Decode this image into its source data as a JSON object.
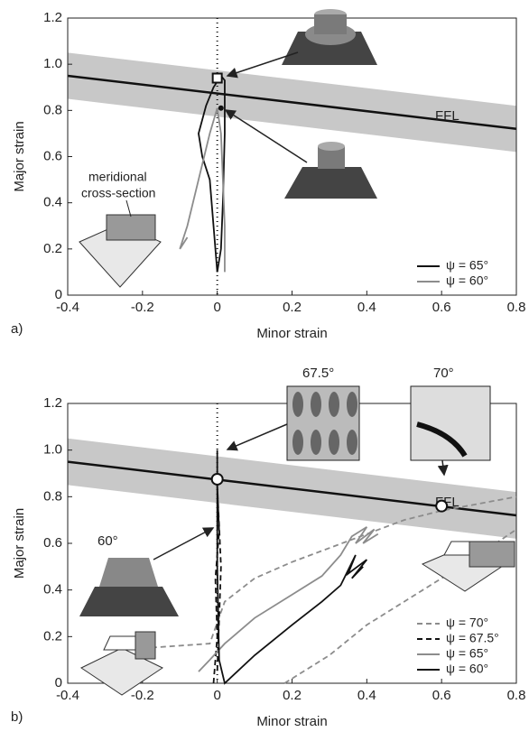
{
  "chart_data": [
    {
      "type": "line",
      "panel_label": "a)",
      "xlabel": "Minor strain",
      "ylabel": "Major strain",
      "xlim": [
        -0.4,
        0.8
      ],
      "xticks": [
        -0.4,
        -0.2,
        0,
        0.2,
        0.4,
        0.6,
        0.8
      ],
      "ylim": [
        0,
        1.2
      ],
      "yticks": [
        0,
        0.2,
        0.4,
        0.6,
        0.8,
        {
          "value": 1,
          "label": "1.0"
        },
        1.2
      ],
      "legend": "lower right",
      "ffl": {
        "label": "FFL",
        "x": [
          -0.4,
          0.8
        ],
        "y": [
          0.95,
          0.72
        ],
        "upper": [
          1.05,
          0.82
        ],
        "lower": [
          0.85,
          0.62
        ],
        "color": "#c8c8c8"
      },
      "markers": [
        {
          "x": 0,
          "y": 0.94,
          "shape": "square"
        },
        {
          "x": 0.01,
          "y": 0.81,
          "shape": "dot"
        }
      ],
      "annotations": [
        "meridional",
        "cross-section"
      ],
      "series": [
        {
          "name": "ψ = 65°",
          "color": "#111111",
          "style": "solid",
          "x": [
            0.0,
            -0.01,
            -0.02,
            -0.04,
            -0.05,
            -0.03,
            -0.01,
            0.01,
            0.02,
            0.02,
            0.015,
            0.01,
            0.0
          ],
          "values": [
            0.1,
            0.3,
            0.5,
            0.6,
            0.7,
            0.82,
            0.9,
            0.95,
            0.93,
            0.7,
            0.4,
            0.2,
            0.1
          ]
        },
        {
          "name": "ψ = 60°",
          "color": "#8c8c8c",
          "style": "solid",
          "x": [
            -0.08,
            -0.1,
            -0.08,
            -0.05,
            -0.02,
            0.0,
            0.01,
            0.015,
            0.02,
            0.02
          ],
          "values": [
            0.25,
            0.2,
            0.3,
            0.5,
            0.7,
            0.81,
            0.7,
            0.5,
            0.3,
            0.1
          ]
        }
      ]
    },
    {
      "type": "line",
      "panel_label": "b)",
      "xlabel": "Minor strain",
      "ylabel": "Major strain",
      "xlim": [
        -0.4,
        0.8
      ],
      "xticks": [
        -0.4,
        -0.2,
        0,
        0.2,
        0.4,
        0.6,
        0.8
      ],
      "ylim": [
        0,
        1.2
      ],
      "yticks": [
        0,
        0.2,
        0.4,
        0.6,
        0.8,
        {
          "value": 1,
          "label": "1.0"
        },
        1.2
      ],
      "legend": "lower right",
      "ffl": {
        "label": "FFL",
        "x": [
          -0.4,
          0.8
        ],
        "y": [
          0.95,
          0.72
        ],
        "upper": [
          1.05,
          0.82
        ],
        "lower": [
          0.85,
          0.62
        ],
        "color": "#c8c8c8"
      },
      "markers": [
        {
          "x": 0,
          "y": 0.875,
          "shape": "circle"
        },
        {
          "x": 0.6,
          "y": 0.76,
          "shape": "circle"
        }
      ],
      "annotations": [
        "67.5°",
        "70°",
        "60°"
      ],
      "series": [
        {
          "name": "ψ = 70°",
          "color": "#8c8c8c",
          "style": "dashed",
          "x": [
            -0.2,
            -0.02,
            0.02,
            0.1,
            0.2,
            0.3,
            0.4,
            0.5,
            0.6,
            0.7,
            0.8,
            null,
            0.18,
            0.3,
            0.4,
            0.5,
            0.6,
            0.7,
            0.8
          ],
          "values": [
            0.15,
            0.17,
            0.35,
            0.45,
            0.52,
            0.58,
            0.64,
            0.7,
            0.74,
            0.77,
            0.8,
            null,
            0.0,
            0.12,
            0.25,
            0.35,
            0.45,
            0.55,
            0.66
          ]
        },
        {
          "name": "ψ = 67.5°",
          "color": "#111111",
          "style": "dashed",
          "x": [
            -0.01,
            0.0,
            -0.005,
            0.005,
            0.0,
            0.01,
            0.0
          ],
          "values": [
            0.0,
            0.2,
            0.45,
            0.65,
            0.85,
            0.5,
            0.05
          ]
        },
        {
          "name": "ψ = 65°",
          "color": "#8c8c8c",
          "style": "solid",
          "x": [
            -0.05,
            -0.02,
            0.02,
            0.1,
            0.2,
            0.28,
            0.33,
            0.36,
            0.4,
            0.37,
            0.42,
            0.39,
            0.43
          ],
          "values": [
            0.05,
            0.1,
            0.17,
            0.28,
            0.38,
            0.46,
            0.55,
            0.63,
            0.67,
            0.6,
            0.66,
            0.6,
            0.64
          ]
        },
        {
          "name": "ψ = 60°",
          "color": "#111111",
          "style": "solid",
          "x": [
            0.0,
            0.0,
            0.005,
            0.02,
            0.1,
            0.2,
            0.28,
            0.33,
            0.37,
            0.35,
            0.4,
            0.36,
            0.39
          ],
          "values": [
            1.0,
            0.5,
            0.1,
            0.0,
            0.12,
            0.25,
            0.35,
            0.42,
            0.55,
            0.47,
            0.53,
            0.45,
            0.5
          ]
        }
      ]
    }
  ]
}
